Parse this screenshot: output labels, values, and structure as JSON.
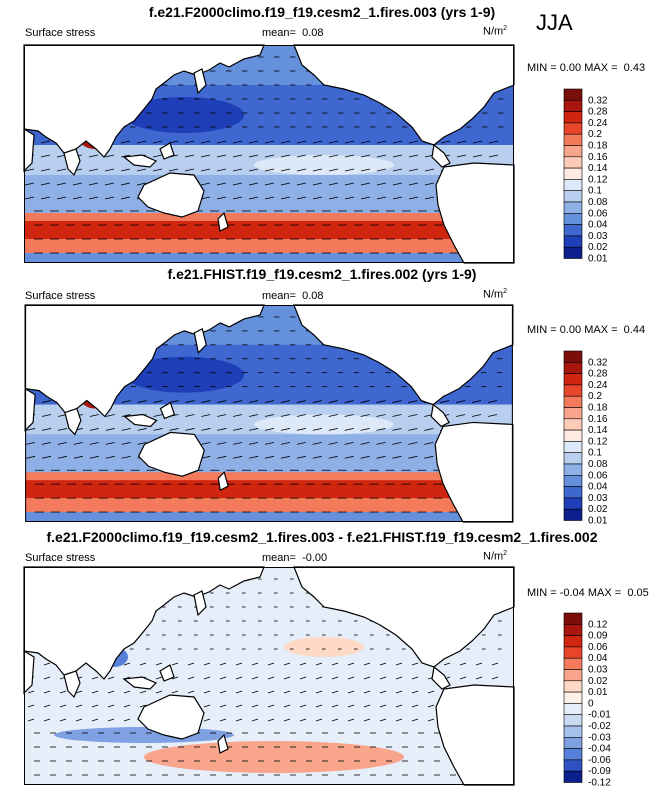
{
  "season": "JJA",
  "colors": {
    "ocean_low": "#0b1f8f",
    "ocean_high": "#b4160f",
    "land": "#ffffff",
    "coast": "#000000"
  },
  "panels": [
    {
      "title": "f.e21.F2000climo.f19_f19.cesm2_1.fires.003 (yrs 1-9)",
      "variable": "Surface stress",
      "mean_label": "mean=",
      "mean_value": "0.08",
      "units": "N/m",
      "units_exp": "2",
      "min_label": "MIN =",
      "min_value": "0.00",
      "max_label": "MAX =",
      "max_value": "0.43",
      "colorbar": [
        "0.32",
        "0.28",
        "0.24",
        "0.2",
        "0.18",
        "0.16",
        "0.14",
        "0.12",
        "0.1",
        "0.08",
        "0.06",
        "0.04",
        "0.03",
        "0.02",
        "0.01"
      ]
    },
    {
      "title": "f.e21.FHIST.f19_f19.cesm2_1.fires.002 (yrs 1-9)",
      "variable": "Surface stress",
      "mean_label": "mean=",
      "mean_value": "0.08",
      "units": "N/m",
      "units_exp": "2",
      "min_label": "MIN =",
      "min_value": "0.00",
      "max_label": "MAX =",
      "max_value": "0.44",
      "colorbar": [
        "0.32",
        "0.28",
        "0.24",
        "0.2",
        "0.18",
        "0.16",
        "0.14",
        "0.12",
        "0.1",
        "0.08",
        "0.06",
        "0.04",
        "0.03",
        "0.02",
        "0.01"
      ]
    },
    {
      "title": "f.e21.F2000climo.f19_f19.cesm2_1.fires.003 - f.e21.FHIST.f19_f19.cesm2_1.fires.002",
      "variable": "Surface stress",
      "mean_label": "mean=",
      "mean_value": "-0.00",
      "units": "N/m",
      "units_exp": "2",
      "min_label": "MIN =",
      "min_value": "-0.04",
      "max_label": "MAX =",
      "max_value": "0.05",
      "colorbar": [
        "0.12",
        "0.09",
        "0.06",
        "0.04",
        "0.03",
        "0.02",
        "0.01",
        "0",
        "-0.01",
        "-0.02",
        "-0.03",
        "-0.04",
        "-0.06",
        "-0.09",
        "-0.12"
      ]
    }
  ]
}
